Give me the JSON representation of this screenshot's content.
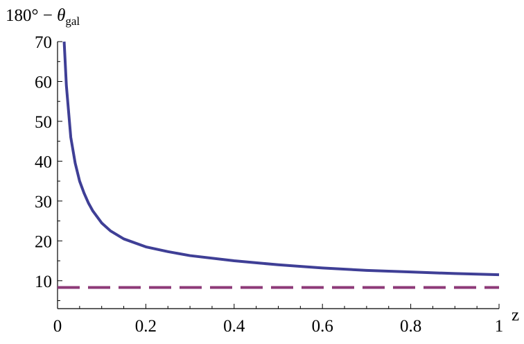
{
  "chart_data": {
    "type": "line",
    "title": "",
    "xlabel": "z",
    "ylabel": {
      "prefix": "180° − ",
      "symbol": "θ",
      "subscript": "gal"
    },
    "xlim": [
      0,
      1
    ],
    "ylim": [
      3,
      70
    ],
    "x_ticks": [
      0,
      0.2,
      0.4,
      0.6,
      0.8,
      1
    ],
    "x_tick_labels": [
      "0",
      "0.2",
      "0.4",
      "0.6",
      "0.8",
      "1"
    ],
    "y_ticks": [
      10,
      20,
      30,
      40,
      50,
      60,
      70
    ],
    "y_tick_labels": [
      "10",
      "20",
      "30",
      "40",
      "50",
      "60",
      "70"
    ],
    "grid": false,
    "series": [
      {
        "style": "solid",
        "color": "#3f3f96",
        "x": [
          0.015,
          0.02,
          0.03,
          0.04,
          0.05,
          0.06,
          0.07,
          0.08,
          0.1,
          0.12,
          0.15,
          0.2,
          0.25,
          0.3,
          0.4,
          0.5,
          0.6,
          0.7,
          0.8,
          0.9,
          1.0
        ],
        "y": [
          70,
          59,
          46,
          39.5,
          35,
          32,
          29.5,
          27.5,
          24.5,
          22.5,
          20.5,
          18.5,
          17.3,
          16.3,
          15.0,
          14.0,
          13.2,
          12.6,
          12.2,
          11.8,
          11.5
        ]
      },
      {
        "style": "dashed",
        "color": "#8e3a78",
        "x": [
          0,
          1
        ],
        "y": [
          8.3,
          8.3
        ]
      }
    ]
  }
}
